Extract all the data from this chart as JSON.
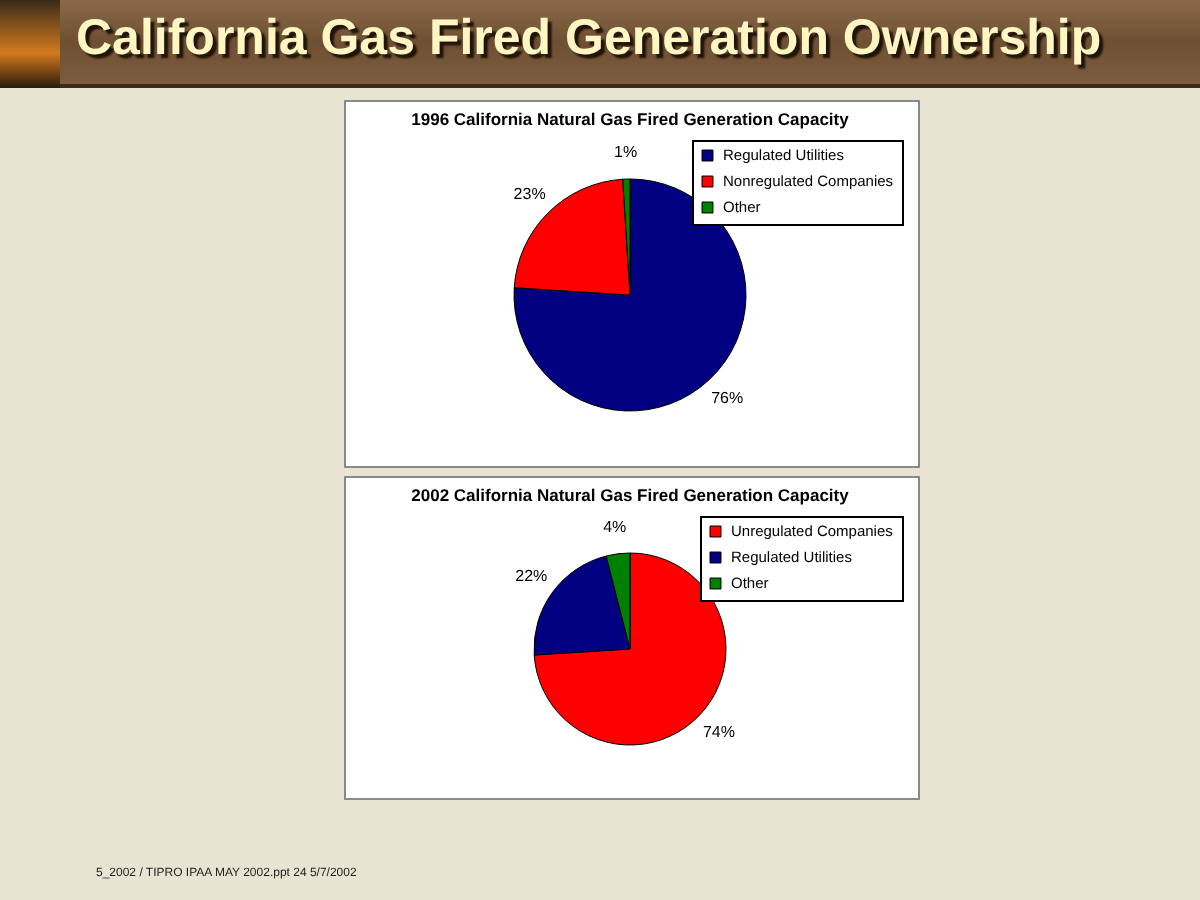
{
  "chart_data": [
    {
      "type": "other",
      "title": "California Gas Fired Generation Ownership",
      "annotations": [
        "5_2002 / TIPRO IPAA MAY 2002.ppt 24 5/7/2002"
      ]
    },
    {
      "type": "pie",
      "title": "1996 California Natural Gas Fired Generation Capacity",
      "categories": [
        "Regulated Utilities",
        "Nonregulated Companies",
        "Other"
      ],
      "values": [
        76,
        23,
        1
      ],
      "colors": [
        "#000080",
        "#ff0000",
        "#008000"
      ],
      "value_labels": [
        "76%",
        "23%",
        "1%"
      ],
      "legend": "top right"
    },
    {
      "type": "pie",
      "title": "2002 California Natural Gas Fired Generation Capacity",
      "categories": [
        "Unregulated Companies",
        "Regulated Utilities",
        "Other"
      ],
      "values": [
        74,
        22,
        4
      ],
      "colors": [
        "#ff0000",
        "#000080",
        "#008000"
      ],
      "value_labels": [
        "74%",
        "22%",
        "4%"
      ],
      "legend": "top right"
    }
  ]
}
